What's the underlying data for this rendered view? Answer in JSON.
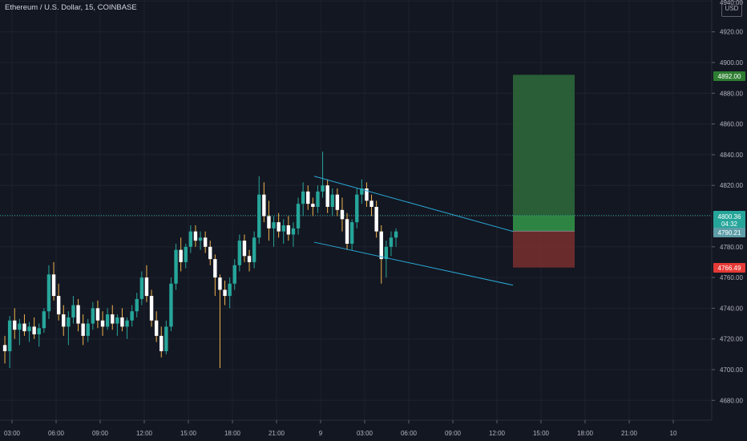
{
  "header": {
    "symbol_title": "Ethereum / U.S. Dollar, 15, COINBASE",
    "currency": "USD"
  },
  "colors": {
    "background": "#131722",
    "grid": "#1e222d",
    "bull": "#26a69a",
    "bear": "#ffffff",
    "wick_up": "#26a69a",
    "wick_down": "#f0b44c",
    "channel": "#2aa8d6",
    "target_zone": "#2e6b3a",
    "stop_zone": "#7a2f2f",
    "current_price": "#26a69a",
    "target_price": "#2e7d32",
    "stop_price": "#e53935"
  },
  "price_scale": {
    "ticks": [
      "4920.00",
      "4900.00",
      "4880.00",
      "4860.00",
      "4840.00",
      "4820.00",
      "4780.00",
      "4760.00",
      "4740.00",
      "4720.00",
      "4700.00",
      "4680.00"
    ],
    "top_partial_label": "4940.00"
  },
  "time_scale": {
    "ticks": [
      "03:00",
      "06:00",
      "09:00",
      "12:00",
      "15:00",
      "18:00",
      "21:00",
      "9",
      "03:00",
      "06:00",
      "09:00",
      "12:00",
      "15:00",
      "18:00",
      "21:00",
      "10"
    ]
  },
  "price_labels": {
    "target": "4892.00",
    "current": "4800.36",
    "countdown": "04:32",
    "entry": "4790.21",
    "stop": "4766.49"
  },
  "chart_data": {
    "type": "candlestick",
    "symbol": "Ethereum / U.S. Dollar",
    "interval": "15",
    "exchange": "COINBASE",
    "ylim": [
      4673,
      4948
    ],
    "x": [
      "03:00",
      "06:00",
      "09:00",
      "12:00",
      "15:00",
      "18:00",
      "21:00",
      "9",
      "03:00",
      "06:00",
      "09:00",
      "12:00",
      "15:00",
      "18:00",
      "21:00",
      "10"
    ],
    "candles_ohlc": [
      [
        4716,
        4722,
        4704,
        4712
      ],
      [
        4712,
        4735,
        4701,
        4732
      ],
      [
        4732,
        4740,
        4720,
        4726
      ],
      [
        4726,
        4733,
        4716,
        4730
      ],
      [
        4730,
        4736,
        4722,
        4725
      ],
      [
        4725,
        4731,
        4718,
        4728
      ],
      [
        4728,
        4734,
        4720,
        4723
      ],
      [
        4723,
        4730,
        4715,
        4727
      ],
      [
        4727,
        4740,
        4724,
        4738
      ],
      [
        4738,
        4768,
        4733,
        4762
      ],
      [
        4762,
        4770,
        4745,
        4748
      ],
      [
        4748,
        4756,
        4732,
        4736
      ],
      [
        4736,
        4742,
        4722,
        4728
      ],
      [
        4728,
        4738,
        4716,
        4734
      ],
      [
        4734,
        4748,
        4730,
        4742
      ],
      [
        4742,
        4746,
        4725,
        4730
      ],
      [
        4730,
        4736,
        4716,
        4722
      ],
      [
        4722,
        4733,
        4718,
        4730
      ],
      [
        4730,
        4744,
        4726,
        4740
      ],
      [
        4740,
        4745,
        4727,
        4732
      ],
      [
        4732,
        4738,
        4722,
        4728
      ],
      [
        4728,
        4740,
        4726,
        4736
      ],
      [
        4736,
        4742,
        4726,
        4730
      ],
      [
        4730,
        4736,
        4722,
        4734
      ],
      [
        4734,
        4740,
        4725,
        4728
      ],
      [
        4728,
        4734,
        4720,
        4732
      ],
      [
        4732,
        4742,
        4728,
        4738
      ],
      [
        4738,
        4750,
        4734,
        4746
      ],
      [
        4746,
        4764,
        4742,
        4760
      ],
      [
        4760,
        4768,
        4744,
        4748
      ],
      [
        4748,
        4752,
        4728,
        4732
      ],
      [
        4732,
        4738,
        4718,
        4722
      ],
      [
        4722,
        4728,
        4708,
        4712
      ],
      [
        4712,
        4732,
        4710,
        4728
      ],
      [
        4728,
        4760,
        4725,
        4756
      ],
      [
        4756,
        4782,
        4752,
        4778
      ],
      [
        4778,
        4786,
        4764,
        4770
      ],
      [
        4770,
        4782,
        4766,
        4780
      ],
      [
        4780,
        4794,
        4776,
        4790
      ],
      [
        4790,
        4794,
        4780,
        4784
      ],
      [
        4784,
        4790,
        4778,
        4786
      ],
      [
        4786,
        4790,
        4776,
        4780
      ],
      [
        4780,
        4784,
        4768,
        4772
      ],
      [
        4772,
        4775,
        4748,
        4760
      ],
      [
        4760,
        4762,
        4701,
        4752
      ],
      [
        4752,
        4758,
        4742,
        4748
      ],
      [
        4748,
        4760,
        4740,
        4756
      ],
      [
        4756,
        4772,
        4752,
        4768
      ],
      [
        4768,
        4788,
        4764,
        4784
      ],
      [
        4784,
        4788,
        4770,
        4774
      ],
      [
        4774,
        4778,
        4764,
        4770
      ],
      [
        4770,
        4790,
        4766,
        4786
      ],
      [
        4786,
        4826,
        4782,
        4814
      ],
      [
        4814,
        4822,
        4796,
        4800
      ],
      [
        4800,
        4810,
        4784,
        4792
      ],
      [
        4792,
        4800,
        4780,
        4796
      ],
      [
        4796,
        4802,
        4786,
        4790
      ],
      [
        4790,
        4798,
        4782,
        4794
      ],
      [
        4794,
        4800,
        4784,
        4788
      ],
      [
        4788,
        4796,
        4780,
        4792
      ],
      [
        4792,
        4812,
        4788,
        4808
      ],
      [
        4808,
        4822,
        4800,
        4816
      ],
      [
        4816,
        4820,
        4804,
        4808
      ],
      [
        4808,
        4812,
        4800,
        4806
      ],
      [
        4806,
        4820,
        4802,
        4816
      ],
      [
        4816,
        4842,
        4812,
        4820
      ],
      [
        4820,
        4824,
        4802,
        4806
      ],
      [
        4806,
        4818,
        4800,
        4814
      ],
      [
        4814,
        4818,
        4800,
        4804
      ],
      [
        4804,
        4812,
        4790,
        4798
      ],
      [
        4798,
        4802,
        4778,
        4782
      ],
      [
        4782,
        4798,
        4778,
        4796
      ],
      [
        4796,
        4818,
        4792,
        4814
      ],
      [
        4814,
        4824,
        4808,
        4818
      ],
      [
        4818,
        4822,
        4806,
        4810
      ],
      [
        4810,
        4814,
        4800,
        4806
      ],
      [
        4806,
        4810,
        4786,
        4790
      ],
      [
        4790,
        4794,
        4756,
        4772
      ],
      [
        4772,
        4784,
        4760,
        4780
      ],
      [
        4780,
        4790,
        4774,
        4786
      ],
      [
        4786,
        4792,
        4780,
        4790
      ]
    ],
    "channel_lines": [
      {
        "from": [
          "21:00 + 2.5 candles",
          4826
        ],
        "to": [
          "12:00 + 1.5 candles",
          4790
        ]
      },
      {
        "from": [
          "21:00 + 2.5 candles",
          4783
        ],
        "to": [
          "12:00 + 1.5 candles",
          4755
        ]
      }
    ],
    "long_position": {
      "entry": 4790.21,
      "target": 4892.0,
      "stop": 4766.49,
      "current_price": 4800.36,
      "candle_countdown": "04:32"
    },
    "grid": true
  }
}
